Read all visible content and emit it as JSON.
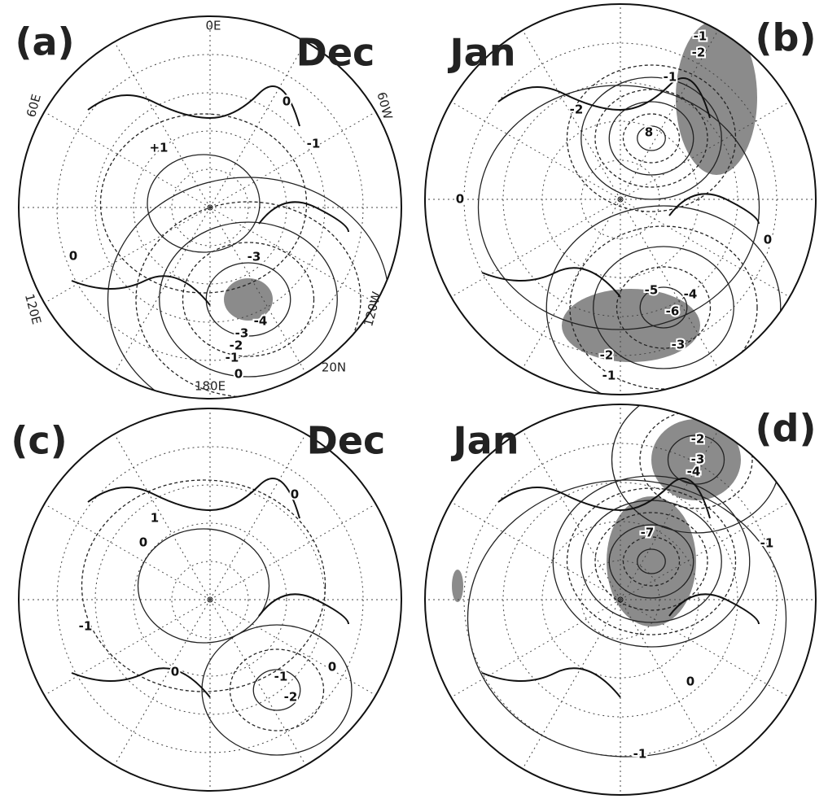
{
  "panels": [
    {
      "label": "(a)",
      "month": "Dec",
      "contour_labels": [
        "0",
        "+1",
        "-1",
        "0",
        "-3",
        "-4",
        "-3",
        "-2",
        "-1",
        "0"
      ],
      "grid_labels": [
        "0E",
        "60W",
        "120W",
        "20N",
        "180E",
        "120E",
        "60E"
      ]
    },
    {
      "label": "(b)",
      "month": "Jan",
      "contour_labels": [
        "-1",
        "-2",
        "-1",
        "-2",
        "8",
        "0",
        "0",
        "-5",
        "-4",
        "-6",
        "-3",
        "-2",
        "-1"
      ]
    },
    {
      "label": "(c)",
      "month": "Dec",
      "contour_labels": [
        "1",
        "0",
        "0",
        "-1",
        "0",
        "-1",
        "-2",
        "0"
      ]
    },
    {
      "label": "(d)",
      "month": "Jan",
      "contour_labels": [
        "-2",
        "-3",
        "-4",
        "-1",
        "-7",
        "0",
        "-1"
      ]
    }
  ]
}
